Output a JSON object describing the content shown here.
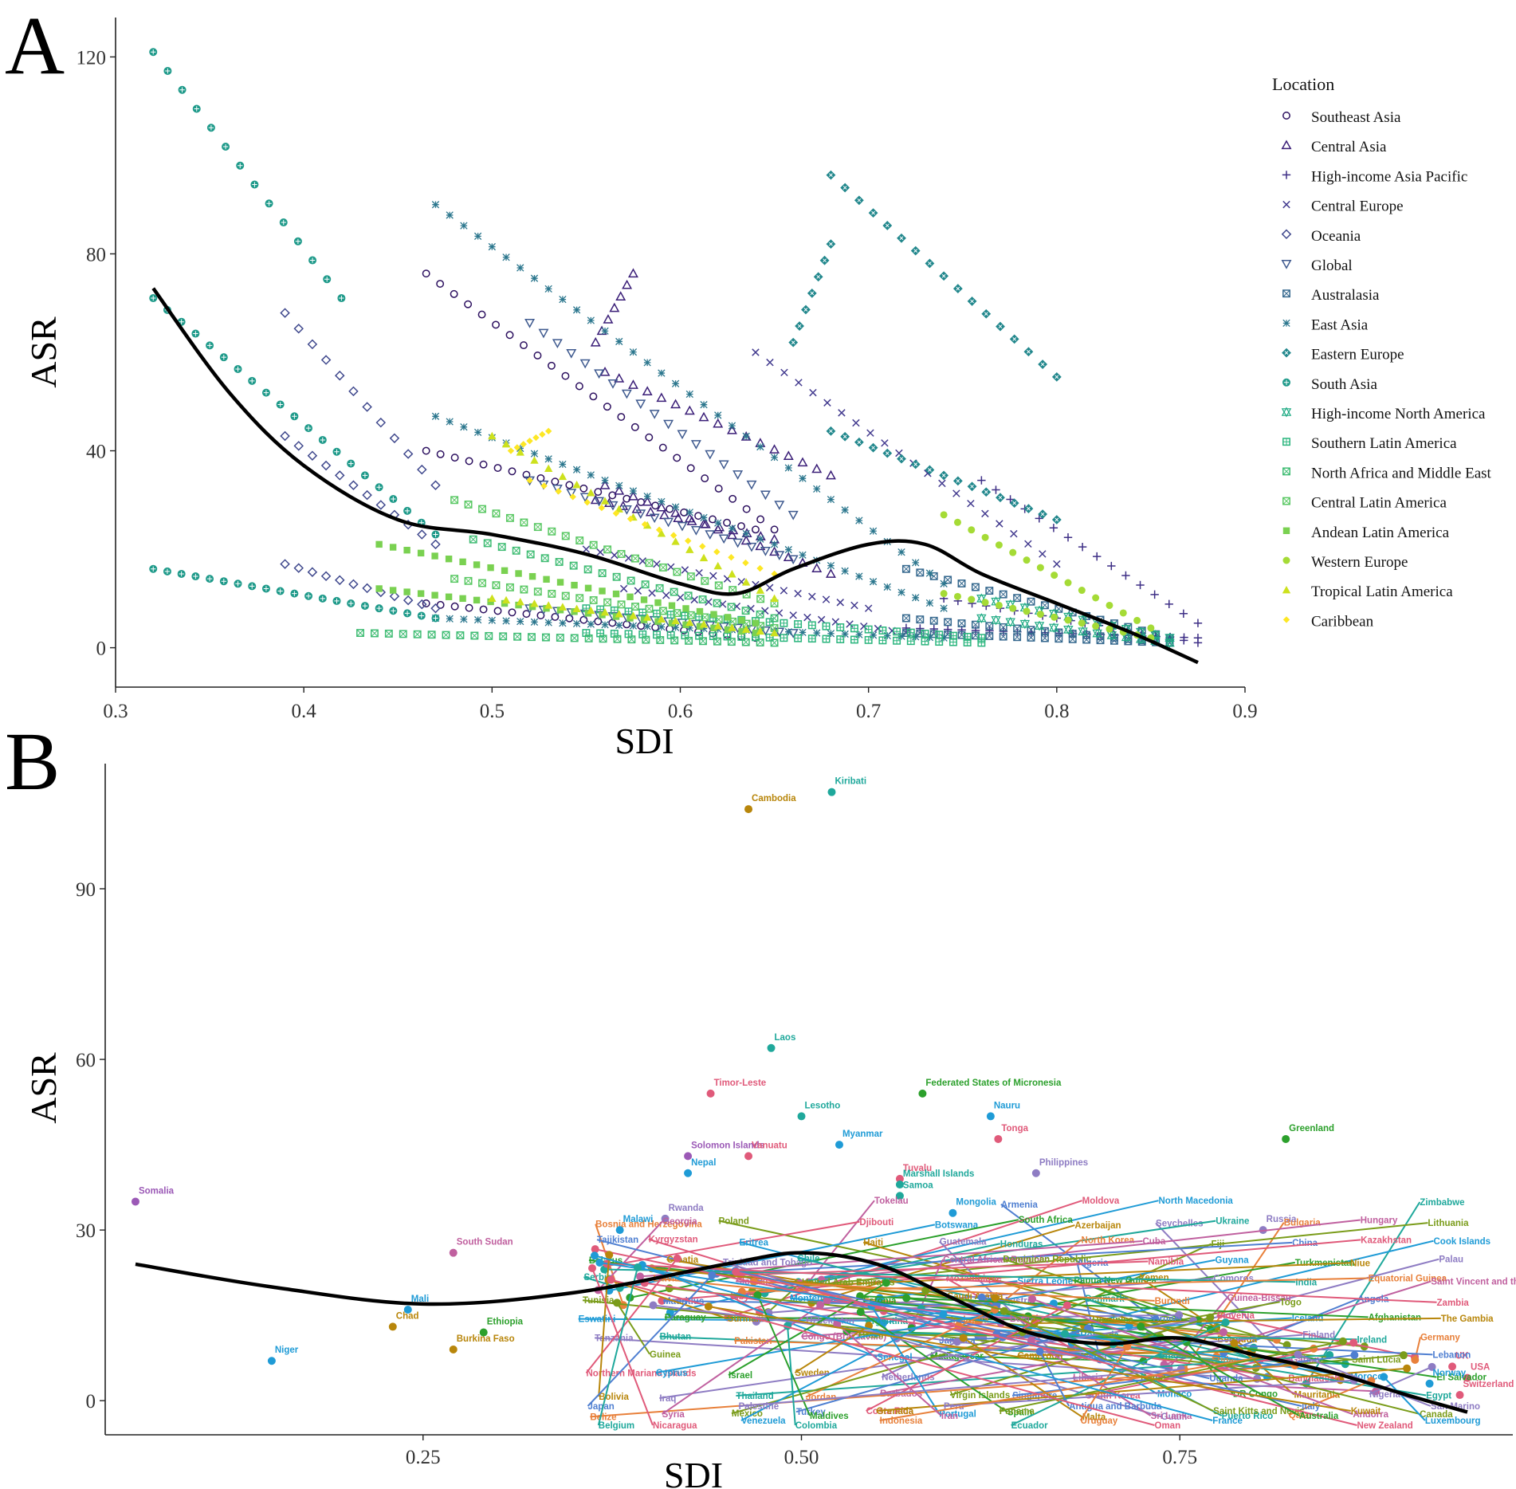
{
  "panel_a_label": "A",
  "panel_b_label": "B",
  "chart_data": [
    {
      "panel": "A",
      "type": "scatter",
      "xlabel": "SDI",
      "ylabel": "ASR",
      "xlim": [
        0.3,
        0.9
      ],
      "ylim": [
        -8,
        128
      ],
      "xticks": [
        0.3,
        0.4,
        0.5,
        0.6,
        0.7,
        0.8,
        0.9
      ],
      "yticks": [
        0,
        40,
        80,
        120
      ],
      "legend_title": "Location",
      "legend_position": "right",
      "series": [
        {
          "name": "Southeast Asia",
          "marker": "circle",
          "color": "#2d1160",
          "segments": [
            {
              "x0": 0.465,
              "x1": 0.65,
              "y0": 76,
              "y1": 24
            },
            {
              "x0": 0.465,
              "x1": 0.64,
              "y0": 40,
              "y1": 24
            },
            {
              "x0": 0.465,
              "x1": 0.64,
              "y0": 9,
              "y1": 2
            }
          ]
        },
        {
          "name": "Central Asia",
          "marker": "triangle",
          "color": "#3b1f78",
          "segments": [
            {
              "x0": 0.56,
              "x1": 0.68,
              "y0": 56,
              "y1": 35
            },
            {
              "x0": 0.555,
              "x1": 0.575,
              "y0": 62,
              "y1": 76
            },
            {
              "x0": 0.555,
              "x1": 0.65,
              "y0": 30,
              "y1": 22
            },
            {
              "x0": 0.56,
              "x1": 0.68,
              "y0": 33,
              "y1": 15
            }
          ]
        },
        {
          "name": "High-income Asia Pacific",
          "marker": "plus",
          "color": "#3e2f86",
          "segments": [
            {
              "x0": 0.76,
              "x1": 0.875,
              "y0": 34,
              "y1": 5
            },
            {
              "x0": 0.74,
              "x1": 0.875,
              "y0": 10,
              "y1": 1
            },
            {
              "x0": 0.72,
              "x1": 0.875,
              "y0": 4,
              "y1": 2
            }
          ]
        },
        {
          "name": "Central Europe",
          "marker": "x",
          "color": "#433b8f",
          "segments": [
            {
              "x0": 0.64,
              "x1": 0.8,
              "y0": 60,
              "y1": 17
            },
            {
              "x0": 0.55,
              "x1": 0.7,
              "y0": 20,
              "y1": 8
            },
            {
              "x0": 0.57,
              "x1": 0.72,
              "y0": 12,
              "y1": 3
            }
          ]
        },
        {
          "name": "Oceania",
          "marker": "diamond",
          "color": "#414a8e",
          "segments": [
            {
              "x0": 0.39,
              "x1": 0.47,
              "y0": 68,
              "y1": 33
            },
            {
              "x0": 0.39,
              "x1": 0.47,
              "y0": 43,
              "y1": 21
            },
            {
              "x0": 0.39,
              "x1": 0.47,
              "y0": 17,
              "y1": 8
            }
          ]
        },
        {
          "name": "Global",
          "marker": "triangle-down",
          "color": "#3f5a8f",
          "segments": [
            {
              "x0": 0.52,
              "x1": 0.66,
              "y0": 66,
              "y1": 27
            },
            {
              "x0": 0.52,
              "x1": 0.66,
              "y0": 34,
              "y1": 18
            },
            {
              "x0": 0.52,
              "x1": 0.66,
              "y0": 8,
              "y1": 3
            }
          ]
        },
        {
          "name": "Australasia",
          "marker": "square-x",
          "color": "#35688e",
          "segments": [
            {
              "x0": 0.72,
              "x1": 0.86,
              "y0": 16,
              "y1": 2
            },
            {
              "x0": 0.72,
              "x1": 0.86,
              "y0": 6,
              "y1": 1
            },
            {
              "x0": 0.72,
              "x1": 0.86,
              "y0": 3,
              "y1": 1
            }
          ]
        },
        {
          "name": "East Asia",
          "marker": "asterisk",
          "color": "#2c778e",
          "segments": [
            {
              "x0": 0.47,
              "x1": 0.74,
              "y0": 90,
              "y1": 13
            },
            {
              "x0": 0.47,
              "x1": 0.74,
              "y0": 47,
              "y1": 8
            },
            {
              "x0": 0.47,
              "x1": 0.74,
              "y0": 6,
              "y1": 2
            }
          ]
        },
        {
          "name": "Eastern Europe",
          "marker": "diamond-x",
          "color": "#23888d",
          "segments": [
            {
              "x0": 0.68,
              "x1": 0.8,
              "y0": 96,
              "y1": 55
            },
            {
              "x0": 0.66,
              "x1": 0.68,
              "y0": 62,
              "y1": 82
            },
            {
              "x0": 0.68,
              "x1": 0.8,
              "y0": 44,
              "y1": 26
            }
          ]
        },
        {
          "name": "South Asia",
          "marker": "circle-plus",
          "color": "#1f9a8a",
          "segments": [
            {
              "x0": 0.32,
              "x1": 0.42,
              "y0": 121,
              "y1": 71
            },
            {
              "x0": 0.32,
              "x1": 0.47,
              "y0": 71,
              "y1": 23
            },
            {
              "x0": 0.32,
              "x1": 0.47,
              "y0": 16,
              "y1": 6
            }
          ]
        },
        {
          "name": "High-income North America",
          "marker": "star",
          "color": "#1fab84",
          "segments": [
            {
              "x0": 0.76,
              "x1": 0.86,
              "y0": 10,
              "y1": 2
            },
            {
              "x0": 0.76,
              "x1": 0.86,
              "y0": 6,
              "y1": 1
            }
          ]
        },
        {
          "name": "Southern Latin America",
          "marker": "square-plus",
          "color": "#2ab57d",
          "segments": [
            {
              "x0": 0.55,
              "x1": 0.76,
              "y0": 8,
              "y1": 2
            },
            {
              "x0": 0.55,
              "x1": 0.76,
              "y0": 3,
              "y1": 1
            }
          ]
        },
        {
          "name": "North Africa and Middle East",
          "marker": "square-x",
          "color": "#3fbc73",
          "segments": [
            {
              "x0": 0.43,
              "x1": 0.65,
              "y0": 3,
              "y1": 1
            },
            {
              "x0": 0.49,
              "x1": 0.65,
              "y0": 22,
              "y1": 6
            }
          ]
        },
        {
          "name": "Central Latin America",
          "marker": "square-x",
          "color": "#5ac864",
          "segments": [
            {
              "x0": 0.48,
              "x1": 0.65,
              "y0": 30,
              "y1": 9
            },
            {
              "x0": 0.48,
              "x1": 0.65,
              "y0": 14,
              "y1": 4
            }
          ]
        },
        {
          "name": "Andean Latin America",
          "marker": "square",
          "color": "#7ad151",
          "segments": [
            {
              "x0": 0.44,
              "x1": 0.64,
              "y0": 21,
              "y1": 5
            },
            {
              "x0": 0.44,
              "x1": 0.64,
              "y0": 12,
              "y1": 3
            }
          ]
        },
        {
          "name": "Western Europe",
          "marker": "dot",
          "color": "#a5db36",
          "segments": [
            {
              "x0": 0.74,
              "x1": 0.85,
              "y0": 27,
              "y1": 4
            },
            {
              "x0": 0.74,
              "x1": 0.85,
              "y0": 11,
              "y1": 2
            }
          ]
        },
        {
          "name": "Tropical Latin America",
          "marker": "triangle-filled",
          "color": "#cde11d",
          "segments": [
            {
              "x0": 0.5,
              "x1": 0.65,
              "y0": 43,
              "y1": 10
            },
            {
              "x0": 0.5,
              "x1": 0.65,
              "y0": 10,
              "y1": 3
            }
          ]
        },
        {
          "name": "Caribbean",
          "marker": "diamond-filled",
          "color": "#fde725",
          "segments": [
            {
              "x0": 0.51,
              "x1": 0.53,
              "y0": 40,
              "y1": 44
            },
            {
              "x0": 0.52,
              "x1": 0.65,
              "y0": 34,
              "y1": 15
            }
          ]
        }
      ],
      "trend": {
        "x": [
          0.32,
          0.36,
          0.4,
          0.45,
          0.5,
          0.55,
          0.6,
          0.63,
          0.66,
          0.7,
          0.73,
          0.76,
          0.8,
          0.84,
          0.875
        ],
        "y": [
          73,
          52,
          37,
          26,
          23,
          19,
          13,
          11,
          16,
          21,
          21,
          15,
          9,
          3,
          -3
        ]
      }
    },
    {
      "panel": "B",
      "type": "scatter",
      "xlabel": "SDI",
      "ylabel": "ASR",
      "xlim": [
        0.04,
        0.97
      ],
      "ylim": [
        -6,
        112
      ],
      "xticks": [
        0.25,
        0.5,
        0.75
      ],
      "xtick_labels": [
        "0.25",
        "0.50",
        "0.75"
      ],
      "yticks": [
        0,
        30,
        60,
        90
      ],
      "points": [
        {
          "name": "Kiribati",
          "x": 0.52,
          "y": 107,
          "color": "#1fa89b"
        },
        {
          "name": "Cambodia",
          "x": 0.465,
          "y": 104,
          "color": "#b8860b"
        },
        {
          "name": "Laos",
          "x": 0.48,
          "y": 62,
          "color": "#1fa89b"
        },
        {
          "name": "Timor-Leste",
          "x": 0.44,
          "y": 54,
          "color": "#e05a7a"
        },
        {
          "name": "Federated States of Micronesia",
          "x": 0.58,
          "y": 54,
          "color": "#2ca02c"
        },
        {
          "name": "Lesotho",
          "x": 0.5,
          "y": 50,
          "color": "#1fa89b"
        },
        {
          "name": "Nauru",
          "x": 0.625,
          "y": 50,
          "color": "#1f9bd6"
        },
        {
          "name": "Tonga",
          "x": 0.63,
          "y": 46,
          "color": "#e05a7a"
        },
        {
          "name": "Greenland",
          "x": 0.82,
          "y": 46,
          "color": "#2ca02c"
        },
        {
          "name": "Myanmar",
          "x": 0.525,
          "y": 45,
          "color": "#1f9bd6"
        },
        {
          "name": "Solomon Islands",
          "x": 0.425,
          "y": 43,
          "color": "#9b59b6"
        },
        {
          "name": "Vanuatu",
          "x": 0.465,
          "y": 43,
          "color": "#e05a7a"
        },
        {
          "name": "Philippines",
          "x": 0.655,
          "y": 40,
          "color": "#8e7cc3"
        },
        {
          "name": "Nepal",
          "x": 0.425,
          "y": 40,
          "color": "#1f9bd6"
        },
        {
          "name": "Tuvalu",
          "x": 0.565,
          "y": 39,
          "color": "#e05a7a"
        },
        {
          "name": "Somalia",
          "x": 0.06,
          "y": 35,
          "color": "#9b59b6"
        },
        {
          "name": "Samoa",
          "x": 0.565,
          "y": 36,
          "color": "#1fa89b"
        },
        {
          "name": "Marshall Islands",
          "x": 0.565,
          "y": 38,
          "color": "#1fa89b"
        },
        {
          "name": "Mongolia",
          "x": 0.6,
          "y": 33,
          "color": "#1f9bd6"
        },
        {
          "name": "Rwanda",
          "x": 0.41,
          "y": 32,
          "color": "#8e7cc3"
        },
        {
          "name": "Malawi",
          "x": 0.38,
          "y": 30,
          "color": "#1f9bd6"
        },
        {
          "name": "South Sudan",
          "x": 0.27,
          "y": 26,
          "color": "#c0609f"
        },
        {
          "name": "Niger",
          "x": 0.15,
          "y": 7,
          "color": "#1f9bd6"
        },
        {
          "name": "Chad",
          "x": 0.23,
          "y": 13,
          "color": "#b8860b"
        },
        {
          "name": "Mali",
          "x": 0.24,
          "y": 16,
          "color": "#1f9bd6"
        },
        {
          "name": "Burkina Faso",
          "x": 0.27,
          "y": 9,
          "color": "#b8860b"
        },
        {
          "name": "Ethiopia",
          "x": 0.29,
          "y": 12,
          "color": "#2ca02c"
        },
        {
          "name": "Russia",
          "x": 0.805,
          "y": 30,
          "color": "#8e7cc3"
        },
        {
          "name": "UK",
          "x": 0.93,
          "y": 6,
          "color": "#e05a7a"
        },
        {
          "name": "USA",
          "x": 0.94,
          "y": 4,
          "color": "#e05a7a"
        },
        {
          "name": "Switzerland",
          "x": 0.935,
          "y": 1,
          "color": "#e05a7a"
        },
        {
          "name": "Norway",
          "x": 0.915,
          "y": 3,
          "color": "#1f9bd6"
        }
      ],
      "labels": [
        "Kiribati",
        "Cambodia",
        "Laos",
        "Timor-Leste",
        "Federated States of Micronesia",
        "Lesotho",
        "Nauru",
        "Tonga",
        "Greenland",
        "Myanmar",
        "Solomon Islands",
        "Vanuatu",
        "Philippines",
        "Nepal",
        "Tuvalu",
        "Marshall Islands",
        "Samoa",
        "Tokelau",
        "Mongolia",
        "Armenia",
        "Moldova",
        "North Macedonia",
        "Russia",
        "Somalia",
        "Rwanda",
        "Zimbabwe",
        "Bosnia and Herzegovina",
        "Georgia",
        "Poland",
        "Malawi",
        "Djibouti",
        "Botswana",
        "South Africa",
        "Azerbaijan",
        "Seychelles",
        "Ukraine",
        "Bulgaria",
        "Hungary",
        "Lithuania",
        "Tajikistan",
        "Kyrgyzstan",
        "Eritrea",
        "South Sudan",
        "Haiti",
        "Guatemala",
        "Honduras",
        "North Korea",
        "Cuba",
        "Fiji",
        "China",
        "Kazakhstan",
        "Cook Islands",
        "Belarus",
        "Croatia",
        "Trinidad and Tobago",
        "Chile",
        "UK",
        "Central African Republic",
        "Dominican Republic",
        "Algeria",
        "Namibia",
        "Guyana",
        "Turkmenistan",
        "Niue",
        "Palau",
        "Serbia",
        "Latvia",
        "Slovakia",
        "United Arab Emirates",
        "USA",
        "Mozambique",
        "Sierra Leone",
        "Papua New Guinea",
        "Yemen",
        "Comoros",
        "India",
        "Equatorial Guinea",
        "Saint Vincent and the Grenadines",
        "Tunisia",
        "Mauritius",
        "Libya",
        "Montenegro",
        "Estonia",
        "Saudi Arabia",
        "Austria",
        "Denmark",
        "Burundi",
        "Guinea-Bissau",
        "Togo",
        "Angola",
        "Zambia",
        "Eswatini",
        "Paraguay",
        "Suriname",
        "Uzbekistan",
        "Argentina",
        "Malaysia",
        "Bahrain",
        "Dominica",
        "Brunei",
        "Slovenia",
        "Iceland",
        "Afghanistan",
        "The Gambia",
        "Tanzania",
        "Bhutan",
        "Pakistan",
        "Congo (Brazzaville)",
        "Brazil",
        "Jamaica",
        "American Samoa",
        "Romania",
        "Greece",
        "Bermuda",
        "Finland",
        "Ireland",
        "Germany",
        "Mali",
        "Guinea",
        "Chad",
        "Ethiopia",
        "Senegal",
        "Madagascar",
        "Cameroon",
        "Kenya",
        "Ghana",
        "Sudan",
        "Gabon",
        "Saint Lucia",
        "Lebanon",
        "Northern Mariana Islands",
        "Cyprus",
        "Israel",
        "Sweden",
        "Netherlands",
        "Niger",
        "Burkina Faso",
        "Liberia",
        "Benin",
        "Uganda",
        "Bangladesh",
        "Morocco",
        "El Salvador",
        "Bolivia",
        "Iraq",
        "Thailand",
        "Jordan",
        "Barbados",
        "Virgin Islands",
        "Singapore",
        "South Korea",
        "Monaco",
        "DR Congo",
        "Mauritania",
        "Nigeria",
        "Egypt",
        "Belize",
        "Syria",
        "Mexico",
        "Turkey",
        "Costa Rica",
        "Portugal",
        "Spain",
        "Malta",
        "Guam",
        "Puerto Rico",
        "Qatar",
        "Andorra",
        "Canada",
        "Japan",
        "Nicaragua",
        "Venezuela",
        "Maldives",
        "Grenada",
        "Peru",
        "Ecuador",
        "Uruguay",
        "Sri Lanka",
        "Saint Kitts and Nevis",
        "Italy",
        "New Zealand",
        "Luxembourg",
        "Switzerland",
        "Norway",
        "Palestine",
        "Colombia",
        "Indonesia",
        "Iran",
        "Panama",
        "Antigua and Barbuda",
        "Oman",
        "France",
        "Australia",
        "Kuwait",
        "San Marino",
        "Belgium"
      ],
      "trend": {
        "x": [
          0.06,
          0.15,
          0.25,
          0.35,
          0.45,
          0.5,
          0.55,
          0.6,
          0.65,
          0.7,
          0.75,
          0.8,
          0.85,
          0.9,
          0.94
        ],
        "y": [
          24,
          20,
          17,
          19,
          24,
          26,
          24,
          18,
          12,
          10,
          11,
          8,
          5,
          1,
          -2
        ]
      }
    }
  ]
}
